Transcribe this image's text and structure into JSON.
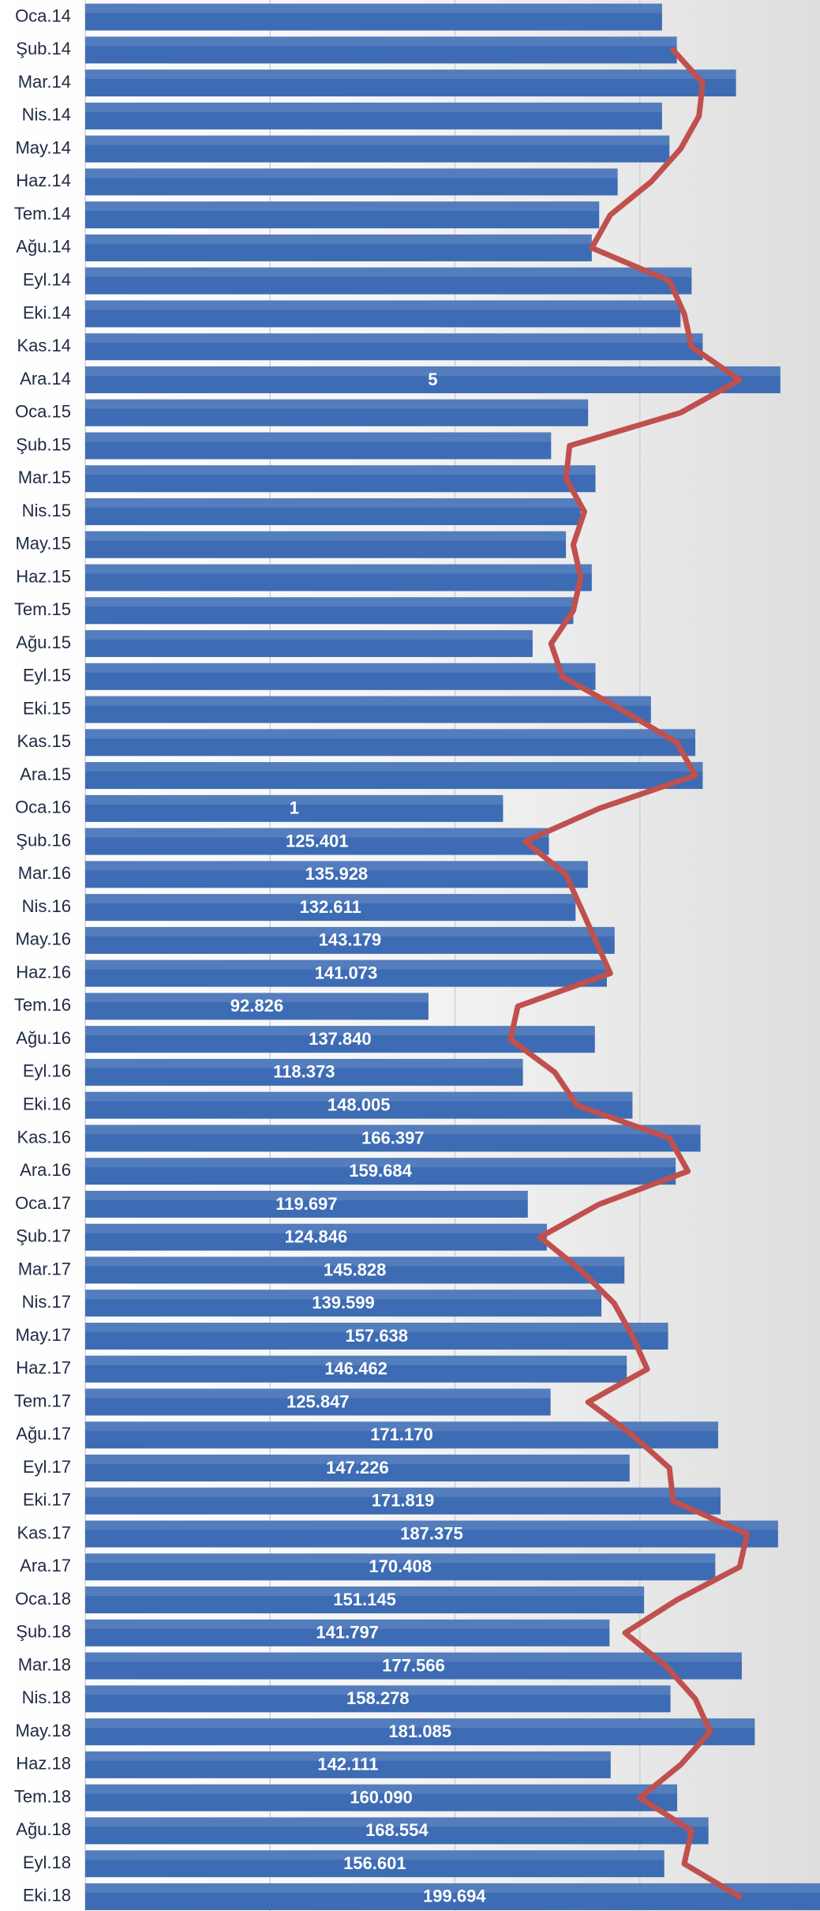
{
  "chart_data": {
    "type": "bar",
    "orientation": "horizontal",
    "categories": [
      "Oca.14",
      "Şub.14",
      "Mar.14",
      "Nis.14",
      "May.14",
      "Haz.14",
      "Tem.14",
      "Ağu.14",
      "Eyl.14",
      "Eki.14",
      "Kas.14",
      "Ara.14",
      "Oca.15",
      "Şub.15",
      "Mar.15",
      "Nis.15",
      "May.15",
      "Haz.15",
      "Tem.15",
      "Ağu.15",
      "Eyl.15",
      "Eki.15",
      "Kas.15",
      "Ara.15",
      "Oca.16",
      "Şub.16",
      "Mar.16",
      "Nis.16",
      "May.16",
      "Haz.16",
      "Tem.16",
      "Ağu.16",
      "Eyl.16",
      "Eki.16",
      "Kas.16",
      "Ara.16",
      "Oca.17",
      "Şub.17",
      "Mar.17",
      "Nis.17",
      "May.17",
      "Haz.17",
      "Tem.17",
      "Ağu.17",
      "Eyl.17",
      "Eki.17",
      "Kas.17",
      "Ara.17",
      "Oca.18",
      "Şub.18",
      "Mar.18",
      "Nis.18",
      "May.18",
      "Haz.18",
      "Tem.18",
      "Ağu.18",
      "Eyl.18",
      "Eki.18"
    ],
    "series": [
      {
        "type": "bar",
        "color": "#3d6cb4",
        "values": [
          156000,
          160000,
          176000,
          156000,
          158000,
          144000,
          139000,
          137000,
          164000,
          161000,
          167000,
          188000,
          136000,
          126000,
          138000,
          134000,
          130000,
          137000,
          132000,
          121000,
          138000,
          153000,
          165000,
          167000,
          113000,
          125401,
          135928,
          132611,
          143179,
          141073,
          92826,
          137840,
          118373,
          148005,
          166397,
          159684,
          119697,
          124846,
          145828,
          139599,
          157638,
          146462,
          125847,
          171170,
          147226,
          171819,
          187375,
          170408,
          151145,
          141797,
          177566,
          158278,
          181085,
          142111,
          160090,
          168554,
          156601,
          199694
        ],
        "value_labels": [
          null,
          null,
          null,
          null,
          null,
          null,
          null,
          null,
          null,
          null,
          null,
          null,
          null,
          null,
          null,
          null,
          null,
          null,
          null,
          null,
          null,
          null,
          null,
          null,
          null,
          "125.401",
          "135.928",
          "132.611",
          "143.179",
          "141.073",
          "92.826",
          "137.840",
          "118.373",
          "148.005",
          "166.397",
          "159.684",
          "119.697",
          "124.846",
          "145.828",
          "139.599",
          "157.638",
          "146.462",
          "125.847",
          "171.170",
          "147.226",
          "171.819",
          "187.375",
          "170.408",
          "151.145",
          "141.797",
          "177.566",
          "158.278",
          "181.085",
          "142.111",
          "160.090",
          "168.554",
          "156.601",
          "199.694"
        ]
      },
      {
        "type": "line",
        "color": "#c0504d",
        "values": [
          null,
          159000,
          167000,
          166000,
          161000,
          153000,
          142000,
          137000,
          158000,
          162000,
          164000,
          177000,
          161000,
          131000,
          130000,
          135000,
          132000,
          134000,
          132000,
          126000,
          129000,
          145000,
          160000,
          165000,
          139000,
          119000,
          130000,
          134000,
          138000,
          142000,
          117000,
          115000,
          127000,
          133000,
          158000,
          163000,
          139000,
          123000,
          134000,
          143000,
          148000,
          152000,
          136000,
          148000,
          158000,
          159000,
          179000,
          177000,
          160000,
          146000,
          157000,
          165000,
          169000,
          161000,
          150000,
          164000,
          162000,
          177000
        ]
      }
    ],
    "annotations": [
      {
        "category": "Ara.14",
        "text": "5"
      },
      {
        "category": "Oca.16",
        "text": "1"
      }
    ],
    "xlim": [
      0,
      200000
    ],
    "xticks": [
      0,
      50000,
      100000,
      150000
    ],
    "grid": true
  }
}
